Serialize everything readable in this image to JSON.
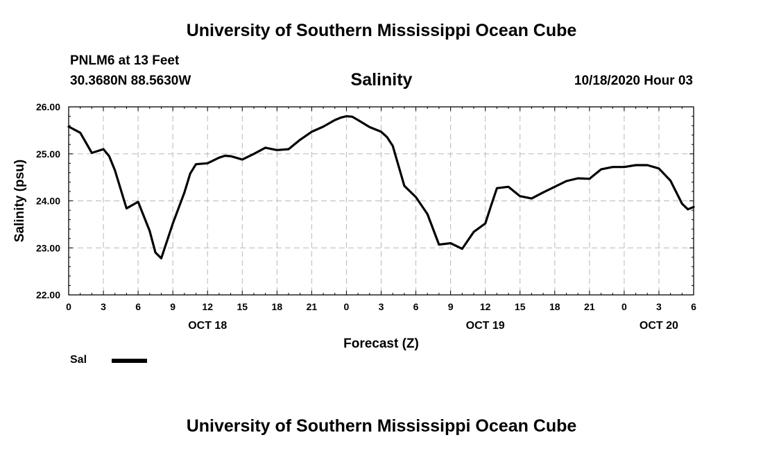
{
  "header": {
    "title": "University of Southern Mississippi Ocean Cube",
    "station": "PNLM6 at 13 Feet",
    "coords": "30.3680N 88.5630W",
    "timestamp": "10/18/2020 Hour 03"
  },
  "footer": {
    "title": "University of Southern Mississippi Ocean Cube"
  },
  "chart_data": {
    "type": "line",
    "title": "Salinity",
    "xlabel": "Forecast (Z)",
    "ylabel": "Salinity (psu)",
    "ylim": [
      22.0,
      26.0
    ],
    "xlim": [
      0,
      54
    ],
    "grid": true,
    "y_ticks": [
      "22.00",
      "23.00",
      "24.00",
      "25.00",
      "26.00"
    ],
    "x_ticks": [
      {
        "x": 0,
        "label": "0"
      },
      {
        "x": 3,
        "label": "3"
      },
      {
        "x": 6,
        "label": "6"
      },
      {
        "x": 9,
        "label": "9"
      },
      {
        "x": 12,
        "label": "12"
      },
      {
        "x": 15,
        "label": "15"
      },
      {
        "x": 18,
        "label": "18"
      },
      {
        "x": 21,
        "label": "21"
      },
      {
        "x": 24,
        "label": "0"
      },
      {
        "x": 27,
        "label": "3"
      },
      {
        "x": 30,
        "label": "6"
      },
      {
        "x": 33,
        "label": "9"
      },
      {
        "x": 36,
        "label": "12"
      },
      {
        "x": 39,
        "label": "15"
      },
      {
        "x": 42,
        "label": "18"
      },
      {
        "x": 45,
        "label": "21"
      },
      {
        "x": 48,
        "label": "0"
      },
      {
        "x": 51,
        "label": "3"
      },
      {
        "x": 54,
        "label": "6"
      }
    ],
    "date_labels": [
      {
        "x": 12,
        "label": "OCT 18"
      },
      {
        "x": 36,
        "label": "OCT 19"
      },
      {
        "x": 51,
        "label": "OCT 20"
      }
    ],
    "legend": {
      "position": "bottom-left",
      "entries": [
        "Sal"
      ]
    },
    "series": [
      {
        "name": "Sal",
        "color": "#000000",
        "x": [
          0,
          1,
          2,
          3,
          3.5,
          4,
          5,
          6,
          7,
          7.5,
          8,
          9,
          10,
          10.5,
          11,
          12,
          13,
          13.5,
          14,
          15,
          16,
          17,
          18,
          19,
          20,
          21,
          22,
          23,
          23.5,
          24,
          24.5,
          25,
          26,
          27,
          27.5,
          28,
          29,
          30,
          31,
          32,
          33,
          34,
          35,
          36,
          36.5,
          37,
          38,
          39,
          40,
          41,
          42,
          43,
          44,
          45,
          46,
          47,
          48,
          49,
          50,
          51,
          52,
          53,
          53.5,
          54
        ],
        "values": [
          25.58,
          25.45,
          25.02,
          25.1,
          24.95,
          24.65,
          23.84,
          23.98,
          23.36,
          22.9,
          22.78,
          23.52,
          24.18,
          24.58,
          24.78,
          24.8,
          24.92,
          24.96,
          24.95,
          24.88,
          25.0,
          25.13,
          25.08,
          25.1,
          25.3,
          25.47,
          25.58,
          25.72,
          25.77,
          25.8,
          25.79,
          25.72,
          25.57,
          25.47,
          25.36,
          25.17,
          24.32,
          24.08,
          23.72,
          23.07,
          23.1,
          22.98,
          23.34,
          23.52,
          23.9,
          24.27,
          24.3,
          24.1,
          24.05,
          24.18,
          24.3,
          24.42,
          24.48,
          24.47,
          24.67,
          24.72,
          24.72,
          24.76,
          24.76,
          24.69,
          24.43,
          23.94,
          23.82,
          23.87
        ]
      }
    ]
  }
}
